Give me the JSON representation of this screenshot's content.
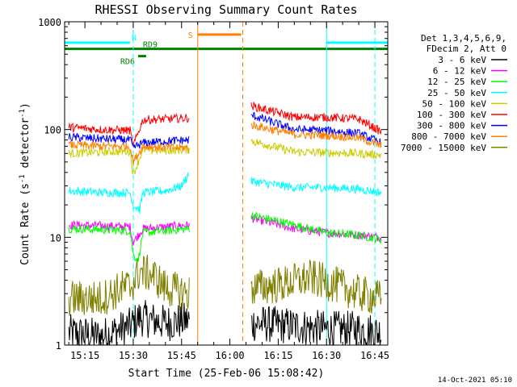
{
  "chart_data": {
    "type": "line",
    "title": "RHESSI Observing Summary Count Rates",
    "xlabel": "Start Time (25-Feb-06 15:08:42)",
    "ylabel": "Count Rate (s⁻¹ detector⁻¹)",
    "ylabel_parts": [
      "Count Rate (s",
      "-1",
      " detector",
      "-1",
      ")"
    ],
    "y_scale": "log",
    "ylim": [
      1,
      1000
    ],
    "y_tick_labels": [
      "1",
      "10",
      "100",
      "1000"
    ],
    "xlim": [
      "15:08:42",
      "16:49:00"
    ],
    "x_tick_labels": [
      "15:15",
      "15:30",
      "15:45",
      "16:00",
      "16:15",
      "16:30",
      "16:45"
    ],
    "legend": {
      "placement": "right",
      "header": [
        "Det 1,3,4,5,6,9,",
        "FDecim 2, Att 0"
      ]
    },
    "timestamp": "14-Oct-2021 05:10",
    "flags": [
      {
        "label": "N",
        "color": "#00ffff",
        "segments": [
          [
            "15:08:42",
            "15:29:00"
          ],
          [
            "16:30:00",
            "16:49:00"
          ]
        ],
        "level": 640
      },
      {
        "label": "RD9",
        "color": "#008000",
        "segments": [
          [
            "15:08:42",
            "16:49:00"
          ]
        ],
        "level": 560
      },
      {
        "label": "RD6",
        "color": "#008000",
        "segments": [
          [
            "15:31:30",
            "15:34:00"
          ]
        ],
        "level": 480
      },
      {
        "label": "S",
        "color": "#ff8000",
        "segments": [
          [
            "15:50:00",
            "16:03:30"
          ]
        ],
        "level": 760
      }
    ],
    "markers": [
      {
        "time": "15:30:00",
        "color": "#00ffff",
        "style": "dashed"
      },
      {
        "time": "16:30:00",
        "color": "#00ffff",
        "style": "solid"
      },
      {
        "time": "16:45:00",
        "color": "#00ffff",
        "style": "dashed"
      },
      {
        "time": "15:50:00",
        "color": "#ff8000",
        "style": "solid"
      },
      {
        "time": "16:04:00",
        "color": "#ff8000",
        "style": "dashed"
      }
    ],
    "data_gap": [
      "15:47:30",
      "16:06:30"
    ],
    "series": [
      {
        "name": "3 - 6 keV",
        "color": "#000000",
        "x": [
          "15:10:00",
          "15:20:00",
          "15:29:00",
          "15:32:00",
          "15:40:00",
          "15:47:00",
          "16:07:00",
          "16:20:00",
          "16:30:00",
          "16:40:00",
          "16:47:00"
        ],
        "values": [
          1.3,
          1.2,
          1.5,
          1.8,
          1.6,
          1.7,
          1.6,
          1.5,
          1.4,
          1.4,
          1.3
        ]
      },
      {
        "name": "6 - 12 keV",
        "color": "#ff00ff",
        "x": [
          "15:10:00",
          "15:20:00",
          "15:29:00",
          "15:30:00",
          "15:33:00",
          "15:40:00",
          "15:47:00",
          "16:07:00",
          "16:20:00",
          "16:30:00",
          "16:40:00",
          "16:47:00"
        ],
        "values": [
          13,
          12.8,
          12.5,
          9,
          12,
          12.5,
          13,
          15,
          12,
          11,
          10.5,
          10
        ]
      },
      {
        "name": "12 - 25 keV",
        "color": "#00ff00",
        "x": [
          "15:10:00",
          "15:20:00",
          "15:29:00",
          "15:30:00",
          "15:31:30",
          "15:33:00",
          "15:40:00",
          "15:47:00",
          "16:07:00",
          "16:20:00",
          "16:30:00",
          "16:40:00",
          "16:47:00"
        ],
        "values": [
          12,
          11.8,
          11.5,
          7,
          6,
          11,
          11.5,
          12,
          16,
          13,
          11,
          10.5,
          9.5
        ]
      },
      {
        "name": "25 - 50 keV",
        "color": "#00ffff",
        "x": [
          "15:10:00",
          "15:20:00",
          "15:29:00",
          "15:30:00",
          "15:32:00",
          "15:33:00",
          "15:40:00",
          "15:45:00",
          "15:47:00",
          "16:07:00",
          "16:20:00",
          "16:30:00",
          "16:40:00",
          "16:47:00"
        ],
        "values": [
          27,
          26,
          26,
          20,
          18,
          26,
          27,
          30,
          38,
          33,
          29,
          29,
          28,
          26
        ]
      },
      {
        "name": "50 - 100 keV",
        "color": "#cccc00",
        "x": [
          "15:10:00",
          "15:20:00",
          "15:29:00",
          "15:30:00",
          "15:33:00",
          "15:40:00",
          "15:47:00",
          "16:07:00",
          "16:20:00",
          "16:30:00",
          "16:40:00",
          "16:47:00"
        ],
        "values": [
          60,
          62,
          63,
          38,
          65,
          64,
          65,
          78,
          62,
          61,
          60,
          58
        ]
      },
      {
        "name": "100 - 300 keV",
        "color": "#ff0000",
        "x": [
          "15:10:00",
          "15:20:00",
          "15:29:00",
          "15:30:00",
          "15:33:00",
          "15:40:00",
          "15:47:00",
          "16:07:00",
          "16:20:00",
          "16:30:00",
          "16:40:00",
          "16:47:00"
        ],
        "values": [
          105,
          100,
          98,
          70,
          123,
          125,
          128,
          165,
          130,
          130,
          125,
          95
        ]
      },
      {
        "name": "300 - 800 keV",
        "color": "#0000ff",
        "x": [
          "15:10:00",
          "15:20:00",
          "15:29:00",
          "15:30:00",
          "15:33:00",
          "15:40:00",
          "15:47:00",
          "16:07:00",
          "16:20:00",
          "16:30:00",
          "16:40:00",
          "16:47:00"
        ],
        "values": [
          85,
          82,
          80,
          68,
          75,
          78,
          80,
          135,
          100,
          98,
          92,
          75
        ]
      },
      {
        "name": "800 - 7000 keV",
        "color": "#ff8000",
        "x": [
          "15:10:00",
          "15:20:00",
          "15:29:00",
          "15:30:00",
          "15:33:00",
          "15:40:00",
          "15:47:00",
          "16:07:00",
          "16:20:00",
          "16:30:00",
          "16:40:00",
          "16:47:00"
        ],
        "values": [
          72,
          70,
          70,
          50,
          70,
          68,
          68,
          110,
          90,
          88,
          84,
          70
        ]
      },
      {
        "name": "7000 - 15000 keV",
        "color": "#808000",
        "x": [
          "15:10:00",
          "15:20:00",
          "15:28:00",
          "15:29:00",
          "15:32:00",
          "15:36:00",
          "15:40:00",
          "15:47:00",
          "16:07:00",
          "16:15:00",
          "16:25:00",
          "16:32:00",
          "16:40:00",
          "16:47:00"
        ],
        "values": [
          2.7,
          2.7,
          3.5,
          3.4,
          4.8,
          4.5,
          3.4,
          3.0,
          3.4,
          3.6,
          4.2,
          3.7,
          3.0,
          2.7
        ]
      }
    ]
  }
}
